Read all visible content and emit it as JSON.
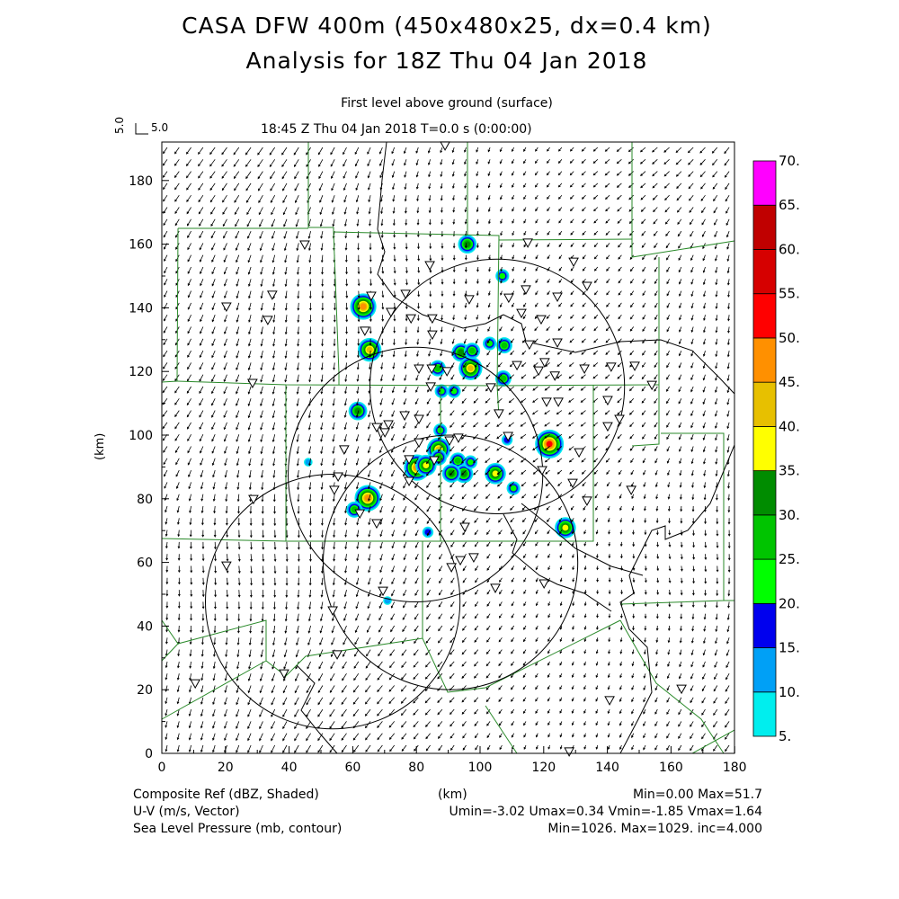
{
  "header": {
    "title_line1": "CASA DFW 400m (450x480x25, dx=0.4 km)",
    "title_line2": "Analysis for 18Z Thu 04 Jan 2018",
    "level_label": "First level above ground (surface)",
    "time_label": "18:45 Z Thu 04 Jan 2018    T=0.0 s (0:00:00)",
    "ref_vector_u": "5.0",
    "ref_vector_v": "5.0"
  },
  "footer": {
    "field1_label": "Composite Ref (dBZ, Shaded)",
    "field1_stats": "Min=0.00 Max=51.7",
    "xaxis_unit": "(km)",
    "field2_label": "U-V (m/s, Vector)",
    "field2_stats": "Umin=-3.02 Umax=0.34 Vmin=-1.85 Vmax=1.64",
    "field3_label": "Sea Level Pressure (mb, contour)",
    "field3_stats": "Min=1026. Max=1029. inc=4.000"
  },
  "chart_data": {
    "type": "heatmap",
    "xlabel": "(km)",
    "ylabel": "(km)",
    "xlim": [
      0,
      180
    ],
    "ylim": [
      0,
      191.6
    ],
    "xticks": [
      0,
      20,
      40,
      60,
      80,
      100,
      120,
      140,
      160,
      180
    ],
    "yticks": [
      0,
      20,
      40,
      60,
      80,
      100,
      120,
      140,
      160,
      180
    ],
    "xtick_labels": [
      "0",
      "20",
      "40",
      "60",
      "80",
      "100",
      "120",
      "140",
      "160",
      "180"
    ],
    "ytick_labels": [
      "0",
      "20",
      "40",
      "60",
      "80",
      "100",
      "120",
      "140",
      "160",
      "180"
    ],
    "colorbar": {
      "labels": [
        "5.",
        "10.",
        "15.",
        "20.",
        "25.",
        "30.",
        "35.",
        "40.",
        "45.",
        "50.",
        "55.",
        "60.",
        "65.",
        "70."
      ],
      "levels": [
        5,
        10,
        15,
        20,
        25,
        30,
        35,
        40,
        45,
        50,
        55,
        60,
        65,
        70
      ],
      "colors": [
        "#00eeee",
        "#00a0f6",
        "#0000ee",
        "#00ff00",
        "#00c400",
        "#008c00",
        "#ffff00",
        "#e7c000",
        "#ff9000",
        "#ff0000",
        "#d60000",
        "#c00000",
        "#ff00ff"
      ]
    },
    "radar_range_rings_km": [
      {
        "x": 105.4,
        "y": 115.3,
        "r": 40
      },
      {
        "x": 79.7,
        "y": 87.6,
        "r": 40
      },
      {
        "x": 90.7,
        "y": 60.0,
        "r": 40
      },
      {
        "x": 53.7,
        "y": 47.7,
        "r": 40
      }
    ],
    "reflectivity_cells": [
      {
        "x": 96,
        "y": 160,
        "dbz": 30
      },
      {
        "x": 63.3,
        "y": 140.4,
        "dbz": 45
      },
      {
        "x": 65.3,
        "y": 126.8,
        "dbz": 40
      },
      {
        "x": 94,
        "y": 126,
        "dbz": 30
      },
      {
        "x": 107,
        "y": 150,
        "dbz": 20
      },
      {
        "x": 97,
        "y": 121,
        "dbz": 40
      },
      {
        "x": 86.7,
        "y": 121,
        "dbz": 25
      },
      {
        "x": 61.6,
        "y": 107.6,
        "dbz": 30
      },
      {
        "x": 121.8,
        "y": 97.2,
        "dbz": 51.7
      },
      {
        "x": 87,
        "y": 95.5,
        "dbz": 40
      },
      {
        "x": 80.2,
        "y": 89.8,
        "dbz": 45
      },
      {
        "x": 93,
        "y": 92,
        "dbz": 25
      },
      {
        "x": 94.9,
        "y": 87.9,
        "dbz": 30
      },
      {
        "x": 104.8,
        "y": 87.9,
        "dbz": 35
      },
      {
        "x": 64.7,
        "y": 80.2,
        "dbz": 45
      },
      {
        "x": 60.5,
        "y": 76.6,
        "dbz": 25
      },
      {
        "x": 126.8,
        "y": 70.9,
        "dbz": 35
      },
      {
        "x": 110.5,
        "y": 83.3,
        "dbz": 20
      },
      {
        "x": 91.8,
        "y": 113.8,
        "dbz": 20
      },
      {
        "x": 87.9,
        "y": 113.8,
        "dbz": 20
      },
      {
        "x": 103,
        "y": 128.8,
        "dbz": 20
      },
      {
        "x": 107.6,
        "y": 128.2,
        "dbz": 25
      },
      {
        "x": 107.3,
        "y": 117.8,
        "dbz": 25
      },
      {
        "x": 46,
        "y": 91.5,
        "dbz": 10
      },
      {
        "x": 83.6,
        "y": 69.5,
        "dbz": 15
      },
      {
        "x": 70.9,
        "y": 48,
        "dbz": 10
      },
      {
        "x": 97.5,
        "y": 126.5,
        "dbz": 25
      },
      {
        "x": 91,
        "y": 88,
        "dbz": 30
      },
      {
        "x": 83,
        "y": 90.5,
        "dbz": 35
      },
      {
        "x": 87.5,
        "y": 101.5,
        "dbz": 20
      },
      {
        "x": 87,
        "y": 93,
        "dbz": 25
      },
      {
        "x": 97,
        "y": 91.5,
        "dbz": 20
      },
      {
        "x": 108.5,
        "y": 98.5,
        "dbz": 15
      }
    ],
    "stations": [
      [
        89.0,
        191.0
      ],
      [
        44.9,
        159.9
      ],
      [
        115.0,
        160.5
      ],
      [
        129.4,
        154.5
      ],
      [
        84.2,
        153.4
      ],
      [
        133.6,
        146.9
      ],
      [
        114.4,
        145.8
      ],
      [
        65.8,
        143.8
      ],
      [
        76.6,
        144.4
      ],
      [
        34.7,
        144.1
      ],
      [
        109.0,
        143.2
      ],
      [
        124.3,
        143.5
      ],
      [
        96.6,
        142.7
      ],
      [
        20.3,
        140.4
      ],
      [
        72.0,
        138.7
      ],
      [
        113.0,
        138.4
      ],
      [
        33.3,
        136.2
      ],
      [
        78.3,
        136.7
      ],
      [
        85.0,
        136.7
      ],
      [
        119.2,
        136.4
      ],
      [
        63.8,
        132.8
      ],
      [
        85.0,
        131.6
      ],
      [
        115.5,
        128.5
      ],
      [
        124.3,
        129.1
      ],
      [
        120.3,
        122.9
      ],
      [
        118.4,
        120.3
      ],
      [
        111.6,
        122.0
      ],
      [
        132.8,
        120.9
      ],
      [
        141.2,
        121.5
      ],
      [
        148.6,
        121.8
      ],
      [
        123.5,
        118.7
      ],
      [
        28.5,
        116.4
      ],
      [
        80.8,
        120.9
      ],
      [
        84.8,
        120.9
      ],
      [
        89.6,
        120.1
      ],
      [
        84.5,
        115.3
      ],
      [
        103.4,
        115.0
      ],
      [
        120.9,
        110.5
      ],
      [
        124.6,
        110.5
      ],
      [
        140.1,
        111.0
      ],
      [
        154.0,
        115.8
      ],
      [
        105.9,
        106.8
      ],
      [
        76.3,
        106.2
      ],
      [
        80.8,
        105.1
      ],
      [
        140.1,
        102.8
      ],
      [
        143.8,
        105.1
      ],
      [
        67.5,
        102.5
      ],
      [
        71.2,
        103.4
      ],
      [
        70.1,
        100.9
      ],
      [
        80.8,
        97.7
      ],
      [
        108.8,
        99.7
      ],
      [
        90.4,
        98.3
      ],
      [
        93.2,
        99.2
      ],
      [
        57.3,
        95.5
      ],
      [
        131.1,
        94.6
      ],
      [
        77.7,
        92.4
      ],
      [
        85.6,
        92.1
      ],
      [
        119.5,
        89.0
      ],
      [
        129.1,
        85.0
      ],
      [
        77.7,
        85.6
      ],
      [
        55.4,
        87.0
      ],
      [
        54.2,
        82.8
      ],
      [
        147.5,
        82.8
      ],
      [
        133.6,
        79.4
      ],
      [
        28.8,
        79.9
      ],
      [
        62.2,
        75.4
      ],
      [
        67.5,
        72.3
      ],
      [
        95.2,
        71.2
      ],
      [
        20.3,
        59.0
      ],
      [
        98.0,
        61.6
      ],
      [
        93.8,
        60.7
      ],
      [
        91.0,
        58.5
      ],
      [
        53.7,
        44.9
      ],
      [
        69.5,
        51.1
      ],
      [
        104.8,
        52.0
      ],
      [
        120.1,
        53.4
      ],
      [
        55.1,
        31.1
      ],
      [
        38.4,
        25.1
      ],
      [
        10.5,
        22.0
      ],
      [
        140.7,
        16.7
      ],
      [
        163.3,
        20.3
      ],
      [
        128.0,
        0.6
      ]
    ],
    "wind": {
      "umin": -3.02,
      "umax": 0.34,
      "vmin": -1.85,
      "vmax": 1.64,
      "ref_speed": 5.0
    }
  }
}
